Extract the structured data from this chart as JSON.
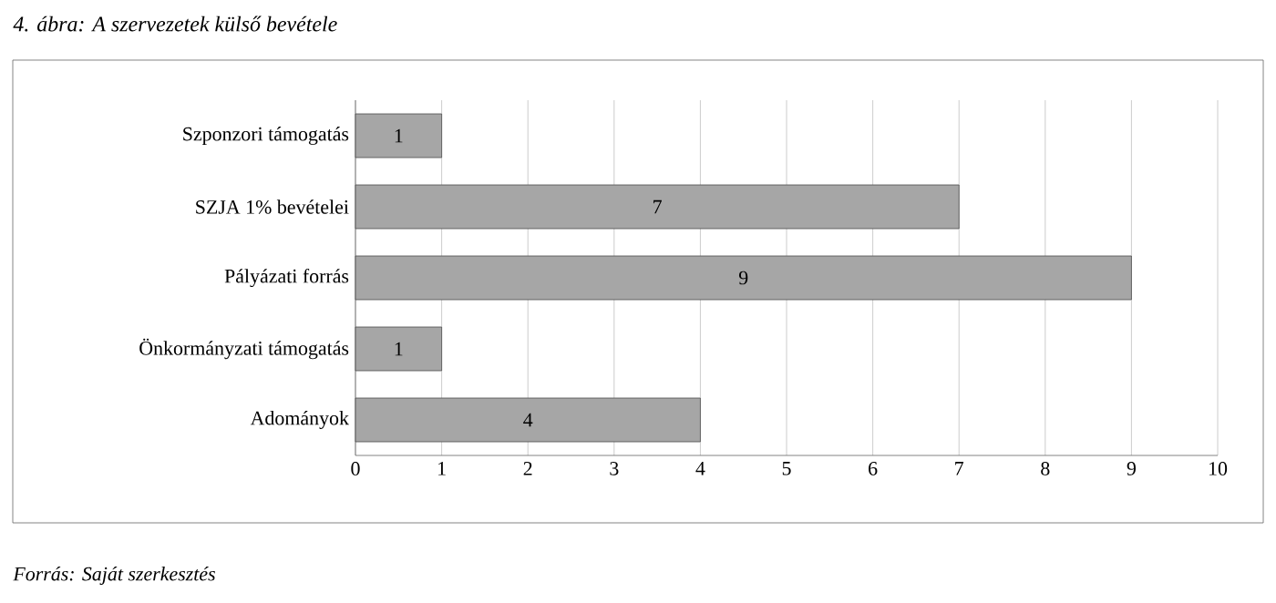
{
  "chart_data": {
    "type": "bar",
    "orientation": "horizontal",
    "title": "4. ábra: A szervezetek külső bevétele",
    "categories": [
      "Szponzori támogatás",
      "SZJA 1% bevételei",
      "Pályázati forrás",
      "Önkormányzati támogatás",
      "Adományok"
    ],
    "values": [
      1,
      7,
      9,
      1,
      4
    ],
    "color": "#a6a6a6",
    "xlim": [
      0,
      10
    ],
    "xticks": [
      0,
      1,
      2,
      3,
      4,
      5,
      6,
      7,
      8,
      9,
      10
    ],
    "grid": "x",
    "data_labels": true,
    "annotations": [
      "Forrás: Saját szerkesztés"
    ]
  }
}
